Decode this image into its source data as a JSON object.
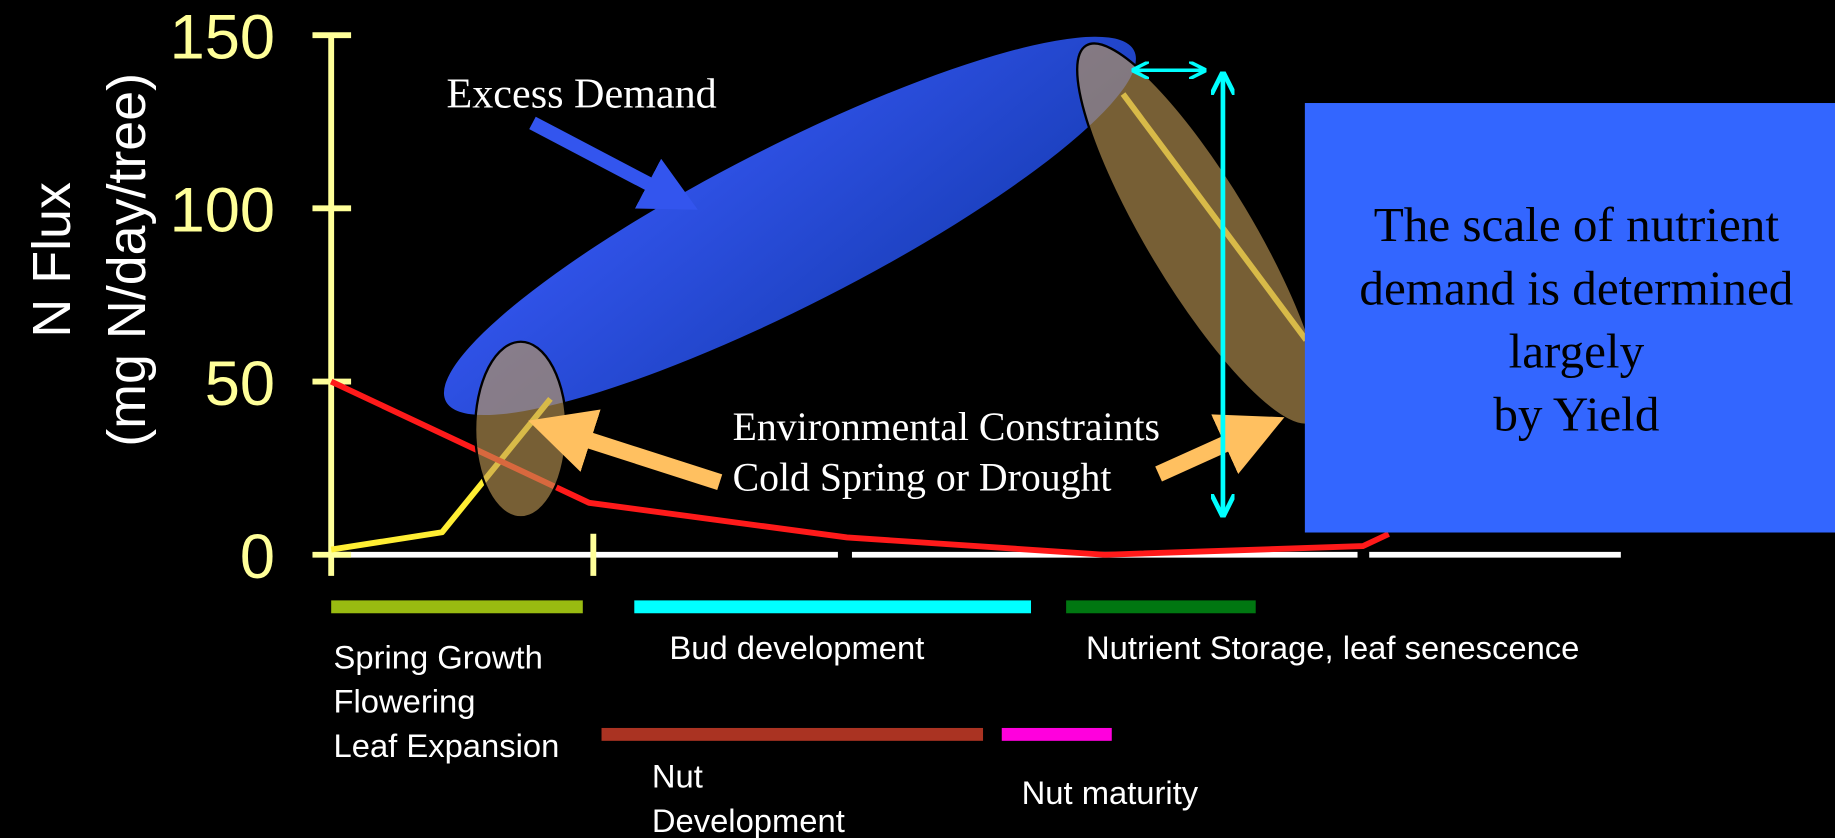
{
  "chart_data": {
    "type": "line",
    "y_label": [
      "N Flux",
      "(mg N/day/tree)"
    ],
    "xlim": [
      0,
      5
    ],
    "ylim": [
      0,
      150
    ],
    "yticks": [
      0,
      50,
      100,
      150
    ],
    "series": [
      {
        "color": "#ffee33",
        "x": [
          0,
          0.43,
          0.85,
          null,
          3.07,
          3.78
        ],
        "values": [
          1.5,
          6.5,
          45,
          null,
          133,
          62
        ]
      },
      {
        "color": "#ff1a1a",
        "x": [
          0,
          1,
          2,
          3,
          4,
          4.1
        ],
        "values": [
          50,
          15,
          5,
          0,
          2.5,
          6
        ]
      }
    ],
    "annotations": {
      "excess": "Excess Demand",
      "constraints": [
        "Environmental Constraints",
        "Cold Spring or Drought"
      ],
      "box": [
        "The scale of nutrient",
        "demand is determined",
        "largely",
        "by Yield"
      ]
    },
    "phases": [
      {
        "label": [
          "Spring Growth",
          "Flowering",
          "Leaf Expansion"
        ],
        "color": "#99bb11"
      },
      {
        "label": [
          "Bud development"
        ],
        "color": "#00ffff"
      },
      {
        "label": [
          "Nutrient Storage, leaf senescence"
        ],
        "color": "#007711"
      },
      {
        "label": [
          "Nut",
          "Development"
        ],
        "color": "#aa3322"
      },
      {
        "label": [
          "Nut  maturity"
        ],
        "color": "#ff00dd"
      }
    ]
  }
}
